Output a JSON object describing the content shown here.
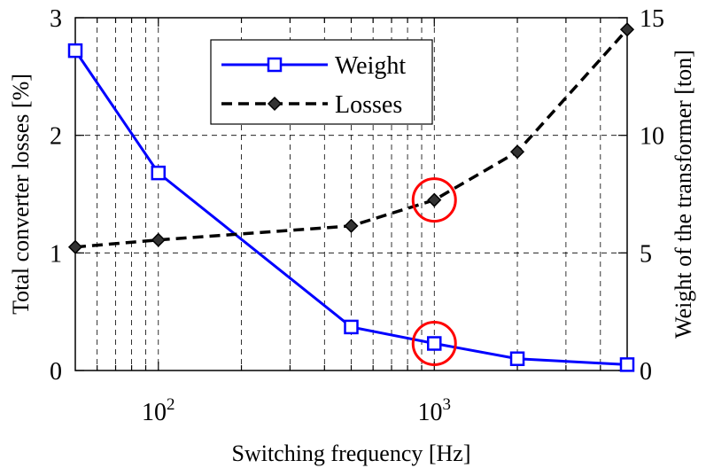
{
  "chart_data": {
    "type": "line",
    "xlabel": "Switching frequency [Hz]",
    "ylabel_left": "Total converter losses [%]",
    "ylabel_right": "Weight of the transformer [ton]",
    "x_scale": "log",
    "xlim": [
      50,
      5000
    ],
    "ylim_left": [
      0,
      3
    ],
    "ylim_right": [
      0,
      15
    ],
    "grid": true,
    "legend_position": "top-center",
    "x_ticks": [
      {
        "value": 100,
        "base": "10",
        "exp": "2"
      },
      {
        "value": 1000,
        "base": "10",
        "exp": "3"
      }
    ],
    "y_ticks_left": [
      "0",
      "1",
      "2",
      "3"
    ],
    "y_ticks_right": [
      "0",
      "5",
      "10",
      "15"
    ],
    "series": [
      {
        "name": "Weight",
        "axis": "right",
        "color": "#0000ff",
        "line_style": "solid",
        "marker": "square",
        "points": [
          {
            "x": 50,
            "y": 13.6
          },
          {
            "x": 100,
            "y": 8.4
          },
          {
            "x": 500,
            "y": 1.85
          },
          {
            "x": 1000,
            "y": 1.15
          },
          {
            "x": 2000,
            "y": 0.5
          },
          {
            "x": 5000,
            "y": 0.25
          }
        ]
      },
      {
        "name": "Losses",
        "axis": "left",
        "color": "#000000",
        "line_style": "dashed",
        "marker": "diamond",
        "points": [
          {
            "x": 50,
            "y": 1.05
          },
          {
            "x": 100,
            "y": 1.11
          },
          {
            "x": 500,
            "y": 1.23
          },
          {
            "x": 1000,
            "y": 1.45
          },
          {
            "x": 2000,
            "y": 1.86
          },
          {
            "x": 5000,
            "y": 2.9
          }
        ]
      }
    ],
    "annotations": [
      {
        "type": "circle",
        "color": "#ff0000",
        "x": 1000,
        "series": "Losses"
      },
      {
        "type": "circle",
        "color": "#ff0000",
        "x": 1000,
        "series": "Weight"
      }
    ]
  }
}
